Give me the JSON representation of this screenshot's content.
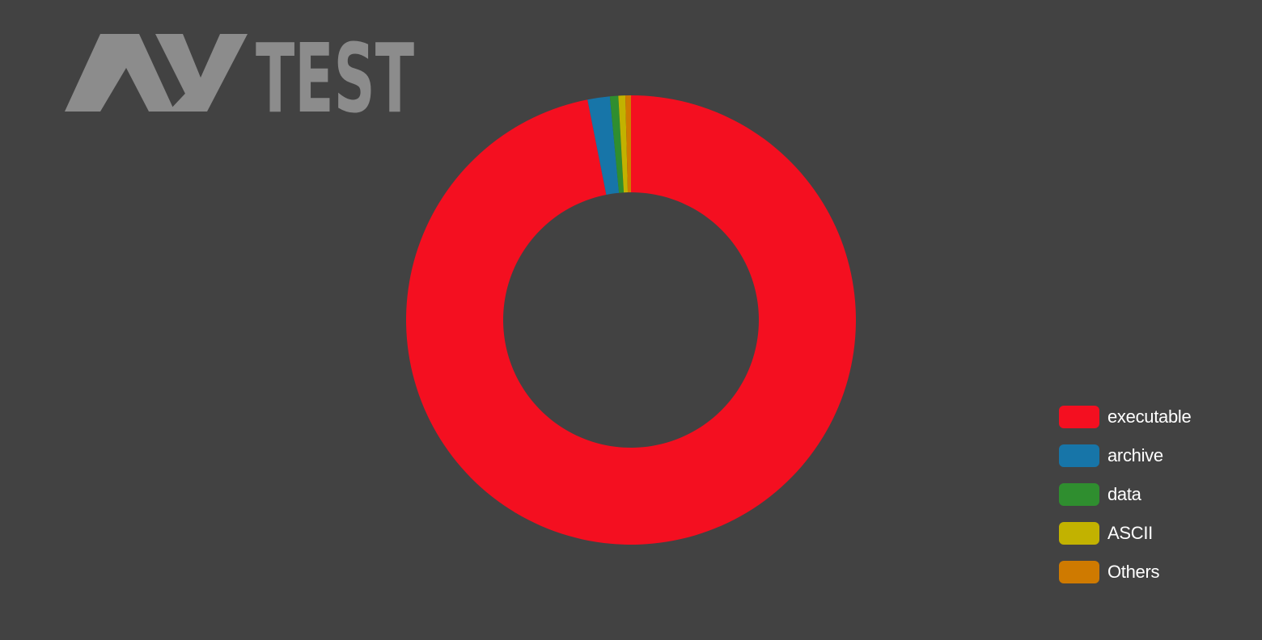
{
  "logo": {
    "text": "AV-TEST",
    "color": "#8c8c8c"
  },
  "chart_data": {
    "type": "pie",
    "variant": "donut",
    "categories": [
      "executable",
      "archive",
      "data",
      "ASCII",
      "Others"
    ],
    "values": [
      96.9,
      1.6,
      0.6,
      0.5,
      0.4
    ],
    "unit": "%",
    "colors": [
      "#f40f20",
      "#1775a8",
      "#2f8e2f",
      "#c2b200",
      "#cf7a00"
    ],
    "title": "",
    "legend": "bottom-right",
    "start_angle": "top",
    "direction": "clockwise"
  }
}
